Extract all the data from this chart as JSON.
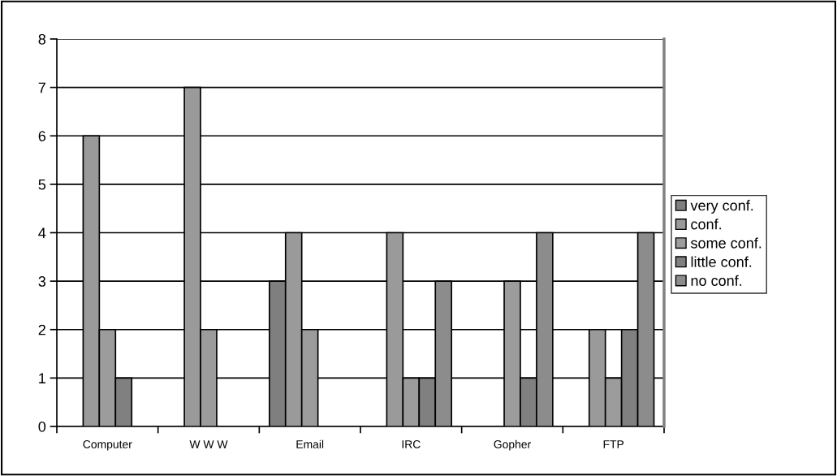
{
  "chart_data": {
    "type": "bar",
    "categories": [
      "Computer",
      "W W W",
      "Email",
      "IRC",
      "Gopher",
      "FTP"
    ],
    "series": [
      {
        "name": "very conf.",
        "color": "#7f7f7f",
        "values": [
          0,
          0,
          3,
          0,
          0,
          0
        ]
      },
      {
        "name": "conf.",
        "color": "#9a9a9a",
        "values": [
          6,
          7,
          4,
          4,
          0,
          2
        ]
      },
      {
        "name": "some conf.",
        "color": "#9c9c9c",
        "values": [
          2,
          2,
          2,
          1,
          3,
          1
        ]
      },
      {
        "name": "little conf.",
        "color": "#808080",
        "values": [
          1,
          0,
          0,
          1,
          1,
          2
        ]
      },
      {
        "name": "no conf.",
        "color": "#8c8c8c",
        "values": [
          0,
          0,
          0,
          3,
          4,
          4
        ]
      }
    ],
    "ylim": [
      0,
      8
    ],
    "yticks": [
      0,
      1,
      2,
      3,
      4,
      5,
      6,
      7,
      8
    ],
    "grid": "y",
    "legend": "right"
  }
}
